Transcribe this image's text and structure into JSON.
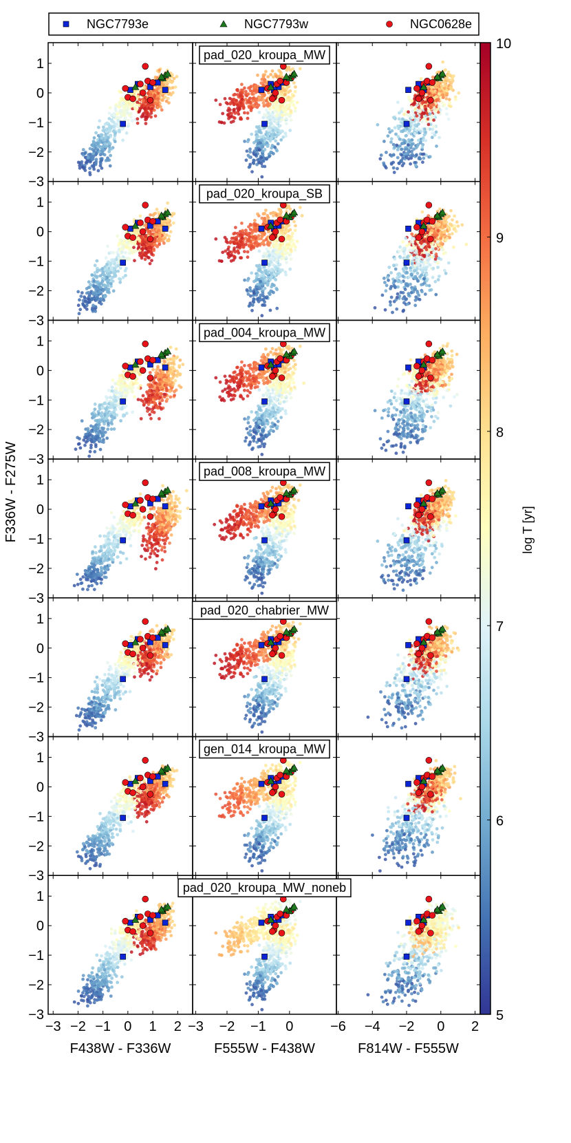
{
  "chart_data": {
    "type": "scatter",
    "legend": {
      "placement": "top",
      "entries": [
        {
          "name": "NGC7793e",
          "marker": "square",
          "color": "#0b24d6"
        },
        {
          "name": "NGC7793w",
          "marker": "triangle",
          "color": "#1f7a1f"
        },
        {
          "name": "NGC0628e",
          "marker": "circle",
          "color": "#e8141a"
        }
      ]
    },
    "ylabel": "F336W - F275W",
    "ylim": [
      -3,
      1.7
    ],
    "yticks": [
      1,
      0,
      -1,
      -2,
      -3
    ],
    "columns": [
      {
        "xlabel": "F438W - F336W",
        "xlim": [
          -3.2,
          2.6
        ],
        "xticks": [
          -3,
          -2,
          -1,
          0,
          1,
          2
        ]
      },
      {
        "xlabel": "F555W - F438W",
        "xlim": [
          -3.1,
          1.5
        ],
        "xticks": [
          -3,
          -2,
          -1,
          0
        ]
      },
      {
        "xlabel": "F814W - F555W",
        "xlim": [
          -6.1,
          2.3
        ],
        "xticks": [
          -6,
          -4,
          -2,
          0,
          2
        ]
      }
    ],
    "rows": [
      {
        "label": "pad_020_kroupa_MW"
      },
      {
        "label": "pad_020_kroupa_SB"
      },
      {
        "label": "pad_004_kroupa_MW"
      },
      {
        "label": "pad_008_kroupa_MW"
      },
      {
        "label": "pad_020_chabrier_MW"
      },
      {
        "label": "gen_014_kroupa_MW"
      },
      {
        "label": "pad_020_kroupa_MW_noneb"
      }
    ],
    "colorbar": {
      "label": "log T [yr]",
      "range": [
        5,
        10
      ],
      "ticks": [
        10,
        9,
        8,
        7,
        6,
        5
      ],
      "colormap": [
        "#313695",
        "#4575b4",
        "#74add1",
        "#abd9e9",
        "#e0f3f8",
        "#ffffbf",
        "#fee090",
        "#fdae61",
        "#f46d43",
        "#d73027",
        "#a50026"
      ]
    },
    "observed": {
      "NGC7793e": [
        {
          "c1": -0.2,
          "c2": -0.8,
          "c3": -2.0,
          "y": -1.05
        },
        {
          "c1": 0.1,
          "c2": -0.9,
          "c3": -1.9,
          "y": 0.1
        },
        {
          "c1": 0.9,
          "c2": -0.35,
          "c3": -1.2,
          "y": 0.2
        },
        {
          "c1": 1.2,
          "c2": -0.2,
          "c3": -0.8,
          "y": 0.35
        },
        {
          "c1": 1.5,
          "c2": -0.5,
          "c3": -1.0,
          "y": 0.1
        },
        {
          "c1": 0.4,
          "c2": -0.6,
          "c3": -1.3,
          "y": 0.3
        }
      ],
      "NGC7793w": [
        {
          "c1": 0.3,
          "c2": -0.6,
          "c3": -1.0,
          "y": 0.2
        },
        {
          "c1": 1.4,
          "c2": 0.0,
          "c3": -0.1,
          "y": 0.5
        },
        {
          "c1": 1.5,
          "c2": 0.1,
          "c3": 0.0,
          "y": 0.6
        },
        {
          "c1": 1.6,
          "c2": 0.15,
          "c3": 0.1,
          "y": 0.65
        },
        {
          "c1": 1.35,
          "c2": -0.1,
          "c3": -0.2,
          "y": 0.55
        }
      ],
      "NGC0628e": [
        {
          "c1": -0.1,
          "c2": -0.7,
          "c3": -1.4,
          "y": 0.15
        },
        {
          "c1": 0.0,
          "c2": -0.5,
          "c3": -1.2,
          "y": -0.15
        },
        {
          "c1": 0.5,
          "c2": -0.4,
          "c3": -1.0,
          "y": 0.3
        },
        {
          "c1": 0.7,
          "c2": -0.2,
          "c3": -0.7,
          "y": 0.9
        },
        {
          "c1": 0.8,
          "c2": -0.3,
          "c3": -0.8,
          "y": 0.4
        },
        {
          "c1": 0.6,
          "c2": -0.45,
          "c3": -1.1,
          "y": 0.0
        },
        {
          "c1": 0.9,
          "c2": -0.25,
          "c3": -0.6,
          "y": -0.25
        },
        {
          "c1": 1.0,
          "c2": -0.1,
          "c3": -0.5,
          "y": 0.35
        },
        {
          "c1": 1.4,
          "c2": 0.05,
          "c3": -0.2,
          "y": 0.5
        },
        {
          "c1": 0.2,
          "c2": -0.55,
          "c3": -1.3,
          "y": -0.2
        }
      ]
    }
  }
}
